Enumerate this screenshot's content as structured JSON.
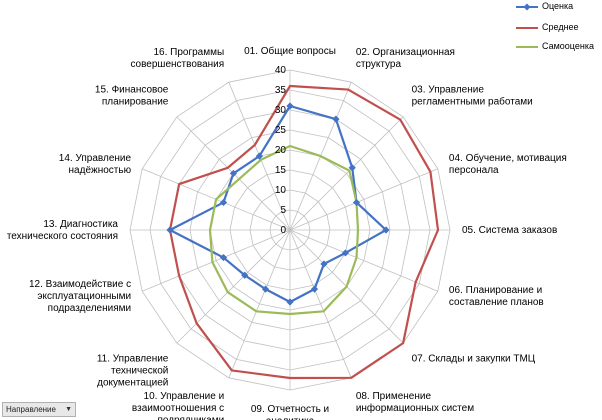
{
  "chart_data": {
    "type": "radar",
    "axes": [
      [
        "01. Общие вопросы"
      ],
      [
        "02. Организационная",
        "структура"
      ],
      [
        "03. Управление",
        "регламентными работами"
      ],
      [
        "04. Обучение, мотивация",
        "персонала"
      ],
      [
        "05. Система заказов"
      ],
      [
        "06. Планирование и",
        "составление планов"
      ],
      [
        "07. Склады и закупки ТМЦ"
      ],
      [
        "08. Применение",
        "информационных систем"
      ],
      [
        "09. Отчетность и",
        "аналитика"
      ],
      [
        "10. Управление и",
        "взаимоотношения с",
        "подрядчиками"
      ],
      [
        "11. Управление",
        "технической",
        "документацией"
      ],
      [
        "12. Взаимодействие с",
        "эксплуатационными",
        "подразделениями"
      ],
      [
        "13. Диагностика",
        "технического состояния"
      ],
      [
        "14. Управление",
        "надёжностью"
      ],
      [
        "15. Финансовое",
        "планирование"
      ],
      [
        "16. Программы",
        "совершенствования"
      ]
    ],
    "r_ticks": [
      "0",
      "5",
      "10",
      "15",
      "20",
      "25",
      "30",
      "35",
      "40"
    ],
    "r_range": [
      0,
      40
    ],
    "series": [
      {
        "name": "Оценка",
        "color": "#4472c4",
        "marker": "diamond",
        "values": [
          31,
          30,
          22,
          18,
          24,
          15,
          12,
          16,
          18,
          16,
          16,
          18,
          30,
          18,
          20,
          20
        ]
      },
      {
        "name": "Среднее",
        "color": "#c0504d",
        "marker": "none",
        "values": [
          36,
          38,
          39,
          38,
          37,
          34,
          40,
          40,
          37,
          38,
          33,
          30,
          30,
          30,
          22,
          23
        ]
      },
      {
        "name": "Самооценка",
        "color": "#9bbb59",
        "marker": "none",
        "values": [
          21,
          20,
          21,
          18,
          17,
          18,
          20,
          22,
          21,
          22,
          22,
          21,
          20,
          20,
          18,
          19
        ]
      }
    ],
    "legend_position": "top-right",
    "grid": true
  },
  "filter": {
    "label": "Направление",
    "arrow": "▼"
  }
}
